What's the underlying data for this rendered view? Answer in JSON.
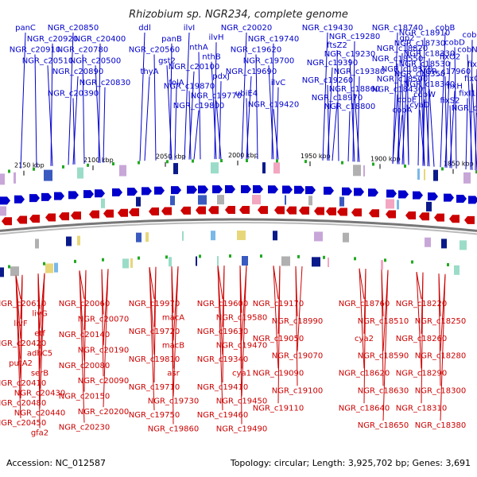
{
  "title": "Rhizobium sp. NGR234, complete genome",
  "footer": {
    "accession": "Accession: NC_012587",
    "summary": "Topology: circular; Length: 3,925,702 bp; Genes: 3,691"
  },
  "colors": {
    "forward": "#0000cc",
    "reverse": "#cc0000",
    "backbone": "#777777",
    "marker": "#22aa22"
  },
  "ticks": [
    "2150 kbp",
    "2100 kbp",
    "2050 kbp",
    "2000 kbp",
    "1950 kbp",
    "1900 kbp",
    "1850 kbp"
  ],
  "forward_genes": [
    "panC",
    "NGR_c20920",
    "NGR_c20910",
    "NGR_c20510",
    "NGR_c20850",
    "NGR_c20400",
    "NGR_c20780",
    "NGR_c20500",
    "NGR_c20890",
    "NGR_c20830",
    "NGR_c20390",
    "ddl",
    "panB",
    "NGR_c20560",
    "gst2",
    "thyA",
    "folA",
    "ilvI",
    "ilvH",
    "nthA",
    "nthB",
    "NGR_c20100",
    "pdxJ",
    "NGR_c19870",
    "NGR_c19770",
    "NGR_c19800",
    "NGR_c20020",
    "NGR_c19740",
    "NGR_c19620",
    "NGR_c19700",
    "NGR_c19690",
    "ilvC",
    "ubiE4",
    "NGR_c19420",
    "NGR_c19430",
    "NGR_c19280",
    "ftsZ2",
    "NGR_c19230",
    "NGR_c19390",
    "NGR_c19380",
    "NGR_c19260",
    "NGR_c18860",
    "NGR_c18970",
    "NGR_c18800",
    "NGR_c18740",
    "NGR_c18910",
    "gp2",
    "NGR_c18730",
    "NGR_c18820",
    "NGR_c18330",
    "NGR_c18550",
    "NGR_c18530",
    "NGR_c18370",
    "NGR_c18350",
    "NGR_c18500",
    "NGR_c18340",
    "NGR_c18430",
    "cobW",
    "cobE",
    "cyaD",
    "cobA",
    "cobB",
    "cobC",
    "cobD",
    "cobN",
    "fixO2",
    "fixP2",
    "NGR_c17960",
    "fixG",
    "fixH",
    "fixI1",
    "fixS2",
    "NGR_c17890"
  ],
  "reverse_genes": [
    "NGR_c20610",
    "livG",
    "livF",
    "etf",
    "NGR_c20420",
    "adhC5",
    "putA2",
    "serB",
    "NGR_c20410",
    "NGR_c20430",
    "NGR_c20480",
    "NGR_c20440",
    "NGR_c20450",
    "gfa2",
    "NGR_c20060",
    "NGR_c20070",
    "NGR_c20140",
    "NGR_c20190",
    "NGR_c20080",
    "NGR_c20090",
    "NGR_c20150",
    "NGR_c20200",
    "NGR_c20230",
    "NGR_c19970",
    "macA",
    "NGR_c19720",
    "macB",
    "NGR_c19810",
    "asr",
    "NGR_c19710",
    "NGR_c19730",
    "NGR_c19750",
    "NGR_c19860",
    "NGR_c19600",
    "NGR_c19580",
    "NGR_c19630",
    "NGR_c19470",
    "NGR_c19340",
    "cya1",
    "NGR_c19410",
    "NGR_c19450",
    "NGR_c19460",
    "NGR_c19490",
    "NGR_c19170",
    "NGR_c18990",
    "NGR_c19050",
    "NGR_c19070",
    "NGR_c19090",
    "NGR_c19100",
    "NGR_c19110",
    "NGR_c18760",
    "NGR_c18510",
    "cya2",
    "NGR_c18590",
    "NGR_c18620",
    "NGR_c18630",
    "NGR_c18640",
    "NGR_c18650",
    "NGR_c18220",
    "NGR_c18250",
    "NGR_c18260",
    "NGR_c18280",
    "NGR_c18290",
    "NGR_c18300",
    "NGR_c18310",
    "NGR_c18380"
  ]
}
